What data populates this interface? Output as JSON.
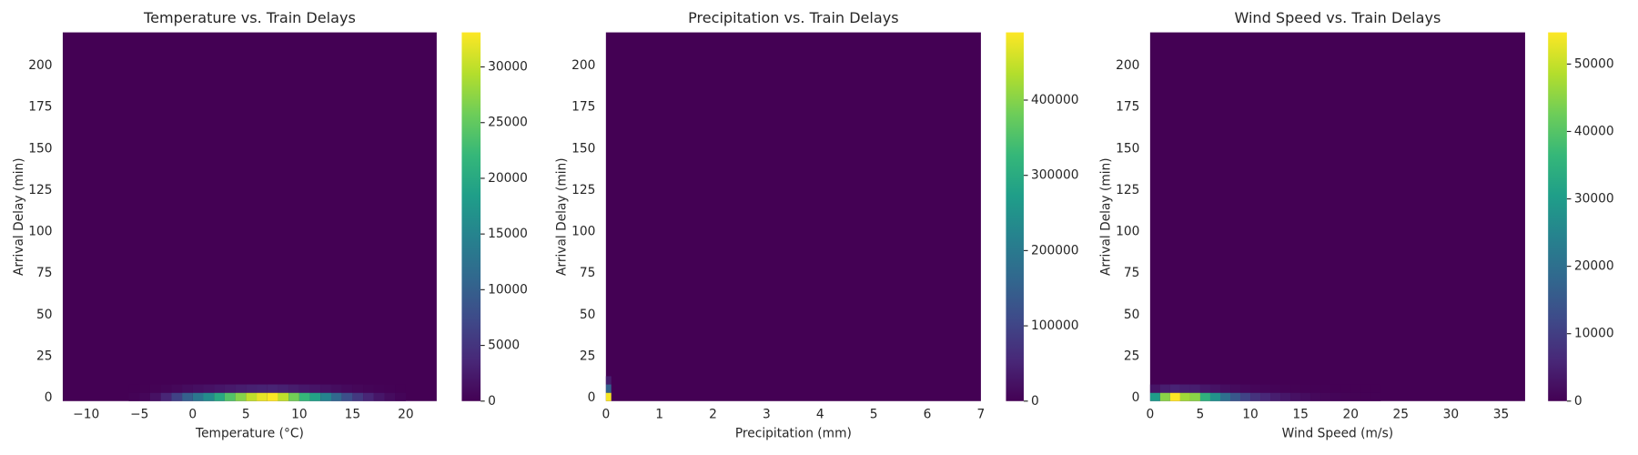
{
  "chart_data": [
    {
      "type": "histogram2d",
      "title": "Temperature vs. Train Delays",
      "xlabel": "Temperature (°C)",
      "ylabel": "Arrival Delay (min)",
      "xlim": [
        -12.2,
        22.9
      ],
      "xticks": [
        {
          "value": -10,
          "label": "−10"
        },
        {
          "value": -5,
          "label": "−5"
        },
        0,
        5,
        10,
        15,
        20
      ],
      "ylim": [
        -2,
        220
      ],
      "yticks": [
        0,
        25,
        50,
        75,
        100,
        125,
        150,
        175,
        200
      ],
      "xbins": [
        -6,
        -5,
        -4,
        -3,
        -2,
        -1,
        0,
        1,
        2,
        3,
        4,
        5,
        6,
        7,
        8,
        9,
        10,
        11,
        12,
        13,
        14,
        15,
        16,
        17,
        18,
        19,
        20
      ],
      "ybins": [
        -2,
        3,
        8
      ],
      "counts": [
        [
          200,
          500,
          1500,
          3500,
          6500,
          10000,
          13000,
          16000,
          20000,
          24000,
          27000,
          30000,
          32000,
          33000,
          30000,
          26000,
          22000,
          19000,
          15000,
          11000,
          8000,
          5500,
          3500,
          2000,
          1000,
          400
        ],
        [
          20,
          50,
          150,
          350,
          650,
          1000,
          1300,
          1600,
          2000,
          2400,
          2700,
          3000,
          3200,
          3300,
          3000,
          2600,
          2200,
          1900,
          1500,
          1100,
          800,
          550,
          350,
          200,
          100,
          40
        ]
      ],
      "colormap": "viridis",
      "clim": [
        0,
        33100
      ],
      "cticks": [
        0,
        5000,
        10000,
        15000,
        20000,
        25000,
        30000
      ]
    },
    {
      "type": "histogram2d",
      "title": "Precipitation vs. Train Delays",
      "xlabel": "Precipitation (mm)",
      "ylabel": "Arrival Delay (min)",
      "xlim": [
        0,
        7
      ],
      "xticks": [
        0,
        1,
        2,
        3,
        4,
        5,
        6,
        7
      ],
      "ylim": [
        -2,
        220
      ],
      "yticks": [
        0,
        25,
        50,
        75,
        100,
        125,
        150,
        175,
        200
      ],
      "xbins": [
        0,
        0.1
      ],
      "ybins": [
        -2,
        3,
        8,
        13
      ],
      "counts": [
        [
          485000
        ],
        [
          150000
        ],
        [
          40000
        ]
      ],
      "colormap": "viridis",
      "clim": [
        0,
        490000
      ],
      "cticks": [
        0,
        100000,
        200000,
        300000,
        400000
      ]
    },
    {
      "type": "histogram2d",
      "title": "Wind Speed vs. Train Delays",
      "xlabel": "Wind Speed (m/s)",
      "ylabel": "Arrival Delay (min)",
      "xlim": [
        0,
        37.4
      ],
      "xticks": [
        0,
        5,
        10,
        15,
        20,
        25,
        30,
        35
      ],
      "ylim": [
        -2,
        220
      ],
      "yticks": [
        0,
        25,
        50,
        75,
        100,
        125,
        150,
        175,
        200
      ],
      "xbins": [
        0,
        1,
        2,
        3,
        4,
        5,
        6,
        7,
        8,
        9,
        10,
        11,
        12,
        13,
        14,
        15,
        16,
        17,
        18,
        19,
        20,
        21,
        22,
        23
      ],
      "ybins": [
        -2,
        3,
        8
      ],
      "counts": [
        [
          30000,
          45000,
          55000,
          47000,
          45000,
          35000,
          28000,
          20000,
          15000,
          11000,
          8000,
          6000,
          4500,
          3500,
          2500,
          1800,
          1200,
          900,
          600,
          400,
          250,
          150,
          100
        ],
        [
          3000,
          4500,
          5500,
          4700,
          4500,
          3500,
          2800,
          2000,
          1500,
          1100,
          800,
          600,
          450,
          350,
          250,
          180,
          120,
          90,
          60,
          40,
          25,
          15,
          10
        ]
      ],
      "colormap": "viridis",
      "clim": [
        0,
        54700
      ],
      "cticks": [
        0,
        10000,
        20000,
        30000,
        40000,
        50000
      ]
    }
  ]
}
